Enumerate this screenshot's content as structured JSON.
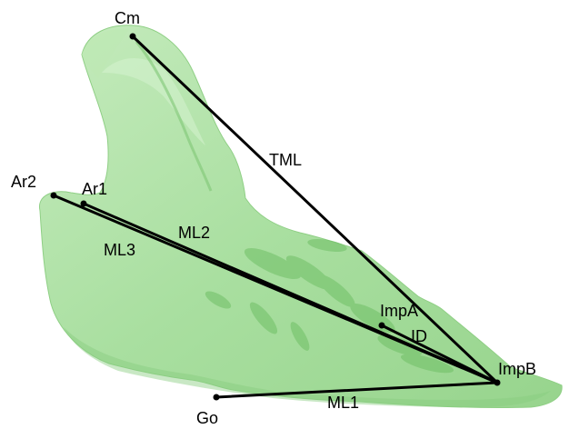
{
  "landmarks": {
    "cm": "Cm",
    "ar1": "Ar1",
    "ar2": "Ar2",
    "go": "Go",
    "impa": "ImpA",
    "impb": "ImpB"
  },
  "measurements": {
    "tml": "TML",
    "ml1": "ML1",
    "ml2": "ML2",
    "ml3": "ML3",
    "id": "ID"
  },
  "colors": {
    "bone_fill": "#a9dfa0",
    "bone_light": "#cdeec4",
    "bone_dark": "#7fc775",
    "lines": "#000000"
  }
}
